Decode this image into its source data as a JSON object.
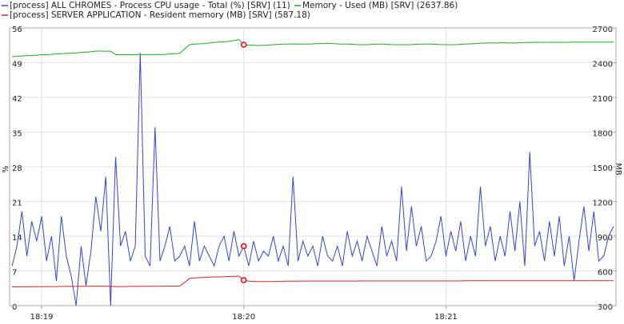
{
  "chart_data": {
    "type": "line",
    "categories": [
      null,
      null,
      null,
      null,
      null,
      null,
      "18:19",
      null,
      null,
      null,
      null,
      null,
      null,
      null,
      null,
      null,
      null,
      null,
      null,
      null,
      null,
      null,
      null,
      null,
      null,
      null,
      null,
      null,
      null,
      null,
      null,
      null,
      null,
      null,
      null,
      null,
      null,
      null,
      null,
      null,
      null,
      null,
      null,
      null,
      null,
      null,
      null,
      "18:20",
      null,
      null,
      null,
      null,
      null,
      null,
      null,
      null,
      null,
      null,
      null,
      null,
      null,
      null,
      null,
      null,
      null,
      null,
      null,
      null,
      null,
      null,
      null,
      null,
      null,
      null,
      null,
      null,
      null,
      null,
      null,
      null,
      null,
      null,
      null,
      null,
      null,
      null,
      null,
      null,
      "18:21",
      null,
      null,
      null,
      null,
      null,
      null,
      null,
      null,
      null,
      null,
      null,
      null,
      null,
      null,
      null,
      null,
      null,
      null,
      null,
      null,
      null,
      null,
      null,
      null,
      null,
      null,
      null,
      null,
      null,
      null,
      null,
      null,
      null,
      null
    ],
    "series": [
      {
        "name": "[process] ALL CHROMES - Process CPU usage - Total (%) [SRV] (11)",
        "color": "#3344dd",
        "values": [
          8,
          12,
          19,
          10,
          17,
          13,
          18,
          9,
          14,
          5,
          18,
          10,
          6,
          0,
          12,
          4,
          11,
          22,
          15,
          26,
          0,
          30,
          12,
          15,
          9,
          12,
          51,
          10,
          8,
          36,
          9,
          12,
          16,
          9,
          10,
          12,
          8,
          17,
          9,
          12,
          10,
          8,
          12,
          14,
          9,
          15,
          10,
          12,
          8,
          13,
          9,
          11,
          10,
          14,
          9,
          12,
          8,
          26,
          9,
          13,
          10,
          12,
          8,
          14,
          10,
          9,
          12,
          8,
          15,
          10,
          13,
          9,
          14,
          11,
          8,
          16,
          10,
          13,
          9,
          24,
          11,
          20,
          12,
          16,
          9,
          10,
          13,
          18,
          10,
          15,
          11,
          17,
          9,
          14,
          10,
          24,
          12,
          16,
          9,
          14,
          10,
          19,
          11,
          21,
          8,
          31,
          12,
          15,
          9,
          17,
          10,
          18,
          8,
          14,
          5,
          13,
          20,
          11,
          19,
          9,
          10,
          14,
          16
        ]
      },
      {
        "name": "Memory - Used (MB) [SRV] (2637.86)",
        "color": "#22aa22",
        "axis": "y2",
        "values": [
          2450,
          2455,
          2458,
          2460,
          2462,
          2465,
          2468,
          2470,
          2472,
          2475,
          2478,
          2480,
          2482,
          2485,
          2488,
          2490,
          2495,
          2500,
          2500,
          2498,
          2500,
          2470,
          2468,
          2470,
          2468,
          2470,
          2472,
          2470,
          2470,
          2472,
          2470,
          2472,
          2475,
          2478,
          2480,
          2520,
          2555,
          2560,
          2562,
          2565,
          2570,
          2575,
          2578,
          2580,
          2585,
          2590,
          2600,
          2555,
          2552,
          2550,
          2548,
          2550,
          2552,
          2555,
          2558,
          2560,
          2560,
          2562,
          2560,
          2560,
          2560,
          2562,
          2565,
          2565,
          2568,
          2565,
          2562,
          2560,
          2560,
          2558,
          2556,
          2555,
          2555,
          2558,
          2560,
          2560,
          2558,
          2556,
          2555,
          2555,
          2555,
          2556,
          2558,
          2560,
          2560,
          2560,
          2558,
          2556,
          2555,
          2555,
          2556,
          2558,
          2560,
          2562,
          2565,
          2568,
          2570,
          2570,
          2570,
          2572,
          2572,
          2570,
          2570,
          2572,
          2574,
          2575,
          2575,
          2575,
          2576,
          2576,
          2575,
          2575,
          2576,
          2576,
          2577,
          2578,
          2578,
          2578,
          2578,
          2578,
          2578,
          2578,
          2578
        ]
      },
      {
        "name": "[process] SERVER APPLICATION - Resident memory (MB) [SRV] (587.18)",
        "color": "#dd2222",
        "axis": "y2",
        "values": [
          462,
          462,
          463,
          463,
          463,
          464,
          464,
          465,
          465,
          465,
          466,
          466,
          466,
          467,
          467,
          467,
          468,
          468,
          468,
          468,
          466,
          465,
          465,
          465,
          466,
          466,
          466,
          467,
          467,
          467,
          468,
          468,
          469,
          469,
          470,
          500,
          535,
          540,
          542,
          544,
          546,
          548,
          548,
          550,
          552,
          553,
          555,
          520,
          512,
          510,
          508,
          508,
          509,
          510,
          510,
          511,
          512,
          512,
          512,
          513,
          513,
          513,
          513,
          513,
          513,
          513,
          513,
          513,
          513,
          513,
          513,
          514,
          514,
          514,
          514,
          514,
          514,
          514,
          514,
          514,
          514,
          514,
          514,
          514,
          514,
          514,
          514,
          514,
          514,
          514,
          514,
          514,
          515,
          515,
          515,
          515,
          515,
          515,
          515,
          515,
          515,
          515,
          515,
          515,
          515,
          515,
          515,
          515,
          515,
          515,
          515,
          515,
          515,
          515,
          515,
          515,
          515,
          515,
          515,
          515,
          515,
          515,
          515
        ]
      }
    ],
    "y_label": "%",
    "y2_label": "MB",
    "ylim": [
      0,
      56
    ],
    "yticks": [
      0,
      7,
      14,
      21,
      28,
      35,
      42,
      49,
      56
    ],
    "y2lim": [
      300,
      2700
    ],
    "y2ticks": [
      300,
      600,
      900,
      1200,
      1500,
      1800,
      2100,
      2400,
      2700
    ],
    "grid": true
  }
}
